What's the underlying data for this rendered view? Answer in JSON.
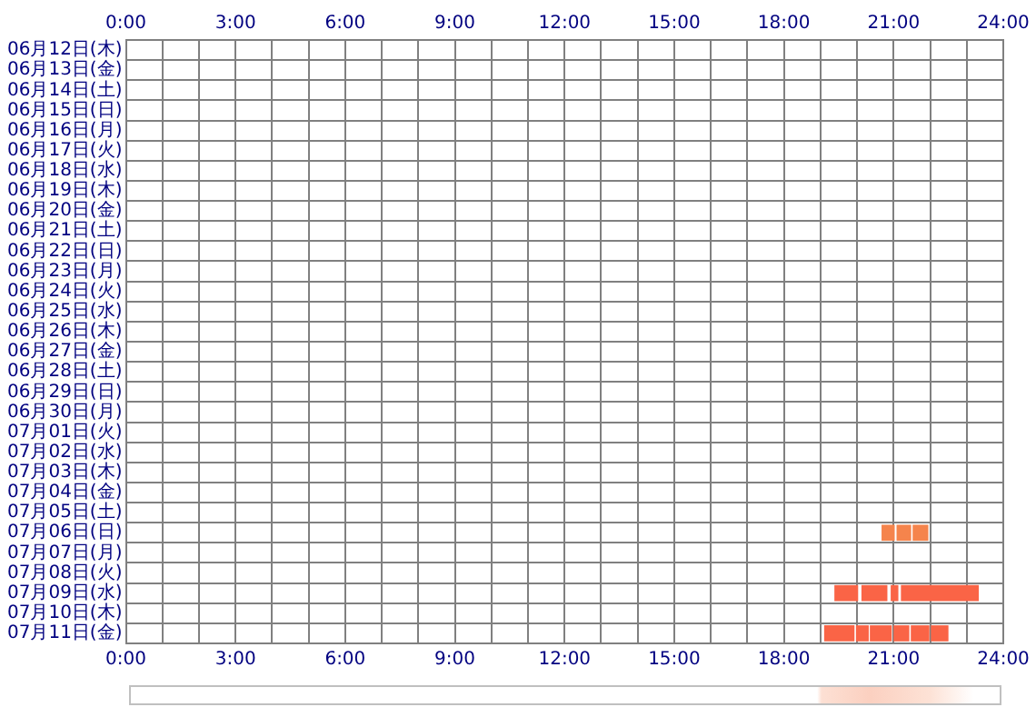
{
  "chart_data": {
    "type": "bar",
    "orientation": "horizontal",
    "categories": [
      "06月12日(木)",
      "06月13日(金)",
      "06月14日(土)",
      "06月15日(日)",
      "06月16日(月)",
      "06月17日(火)",
      "06月18日(水)",
      "06月19日(木)",
      "06月20日(金)",
      "06月21日(土)",
      "06月22日(日)",
      "06月23日(月)",
      "06月24日(火)",
      "06月25日(水)",
      "06月26日(木)",
      "06月27日(金)",
      "06月28日(土)",
      "06月29日(日)",
      "06月30日(月)",
      "07月01日(火)",
      "07月02日(水)",
      "07月03日(木)",
      "07月04日(金)",
      "07月05日(土)",
      "07月06日(日)",
      "07月07日(月)",
      "07月08日(火)",
      "07月09日(水)",
      "07月10日(木)",
      "07月11日(金)"
    ],
    "xlim": [
      0,
      24
    ],
    "xticks": [
      {
        "value": 0,
        "label": "0:00"
      },
      {
        "value": 1,
        "label": null
      },
      {
        "value": 2,
        "label": null
      },
      {
        "value": 3,
        "label": "3:00"
      },
      {
        "value": 4,
        "label": null
      },
      {
        "value": 5,
        "label": null
      },
      {
        "value": 6,
        "label": "6:00"
      },
      {
        "value": 7,
        "label": null
      },
      {
        "value": 8,
        "label": null
      },
      {
        "value": 9,
        "label": "9:00"
      },
      {
        "value": 10,
        "label": null
      },
      {
        "value": 11,
        "label": null
      },
      {
        "value": 12,
        "label": "12:00"
      },
      {
        "value": 13,
        "label": null
      },
      {
        "value": 14,
        "label": null
      },
      {
        "value": 15,
        "label": "15:00"
      },
      {
        "value": 16,
        "label": null
      },
      {
        "value": 17,
        "label": null
      },
      {
        "value": 18,
        "label": "18:00"
      },
      {
        "value": 19,
        "label": null
      },
      {
        "value": 20,
        "label": null
      },
      {
        "value": 21,
        "label": "21:00"
      },
      {
        "value": 22,
        "label": null
      },
      {
        "value": 23,
        "label": null
      },
      {
        "value": 24,
        "label": "24:00"
      }
    ],
    "x2lim": [
      0,
      24
    ],
    "x2ticks": [
      {
        "value": 0,
        "label": "0:00"
      },
      {
        "value": 3,
        "label": "3:00"
      },
      {
        "value": 6,
        "label": "6:00"
      },
      {
        "value": 9,
        "label": "9:00"
      },
      {
        "value": 12,
        "label": "12:00"
      },
      {
        "value": 15,
        "label": "15:00"
      },
      {
        "value": 18,
        "label": "18:00"
      },
      {
        "value": 21,
        "label": "21:00"
      },
      {
        "value": 24,
        "label": "24:00"
      }
    ],
    "grid": true,
    "legend": false,
    "series": [
      {
        "colors": [
          null,
          null,
          null,
          null,
          null,
          null,
          null,
          null,
          null,
          null,
          null,
          null,
          null,
          null,
          null,
          null,
          null,
          null,
          null,
          null,
          null,
          null,
          null,
          null,
          "#f5844c",
          null,
          null,
          "#fa6446",
          null,
          "#fa6446"
        ],
        "base": [
          null,
          null,
          null,
          null,
          null,
          null,
          null,
          null,
          null,
          null,
          null,
          null,
          null,
          null,
          null,
          null,
          null,
          null,
          null,
          null,
          null,
          null,
          null,
          null,
          20.67,
          null,
          null,
          19.38,
          null,
          19.1
        ],
        "values": [
          null,
          null,
          null,
          null,
          null,
          null,
          null,
          null,
          null,
          null,
          null,
          null,
          null,
          null,
          null,
          null,
          null,
          null,
          null,
          null,
          null,
          null,
          null,
          null,
          0.36,
          null,
          null,
          0.65,
          null,
          0.83
        ]
      },
      {
        "colors": [
          null,
          null,
          null,
          null,
          null,
          null,
          null,
          null,
          null,
          null,
          null,
          null,
          null,
          null,
          null,
          null,
          null,
          null,
          null,
          null,
          null,
          null,
          null,
          null,
          "#f5844c",
          null,
          null,
          "#fa6446",
          null,
          "#fa6446"
        ],
        "base": [
          null,
          null,
          null,
          null,
          null,
          null,
          null,
          null,
          null,
          null,
          null,
          null,
          null,
          null,
          null,
          null,
          null,
          null,
          null,
          null,
          null,
          null,
          null,
          null,
          21.08,
          null,
          null,
          20.12,
          null,
          19.97
        ],
        "values": [
          null,
          null,
          null,
          null,
          null,
          null,
          null,
          null,
          null,
          null,
          null,
          null,
          null,
          null,
          null,
          null,
          null,
          null,
          null,
          null,
          null,
          null,
          null,
          null,
          0.4,
          null,
          null,
          0.71,
          null,
          0.35
        ]
      },
      {
        "colors": [
          null,
          null,
          null,
          null,
          null,
          null,
          null,
          null,
          null,
          null,
          null,
          null,
          null,
          null,
          null,
          null,
          null,
          null,
          null,
          null,
          null,
          null,
          null,
          null,
          "#f5844c",
          null,
          null,
          "#fa6446",
          null,
          "#fa6446"
        ],
        "base": [
          null,
          null,
          null,
          null,
          null,
          null,
          null,
          null,
          null,
          null,
          null,
          null,
          null,
          null,
          null,
          null,
          null,
          null,
          null,
          null,
          null,
          null,
          null,
          null,
          21.52,
          null,
          null,
          20.92,
          null,
          20.35
        ],
        "values": [
          null,
          null,
          null,
          null,
          null,
          null,
          null,
          null,
          null,
          null,
          null,
          null,
          null,
          null,
          null,
          null,
          null,
          null,
          null,
          null,
          null,
          null,
          null,
          null,
          0.43,
          null,
          null,
          0.21,
          null,
          0.6
        ]
      },
      {
        "colors": [
          null,
          null,
          null,
          null,
          null,
          null,
          null,
          null,
          null,
          null,
          null,
          null,
          null,
          null,
          null,
          null,
          null,
          null,
          null,
          null,
          null,
          null,
          null,
          null,
          null,
          null,
          null,
          "#fa6446",
          null,
          "#fa6446"
        ],
        "base": [
          null,
          null,
          null,
          null,
          null,
          null,
          null,
          null,
          null,
          null,
          null,
          null,
          null,
          null,
          null,
          null,
          null,
          null,
          null,
          null,
          null,
          null,
          null,
          null,
          null,
          null,
          null,
          21.2,
          null,
          21.0
        ],
        "values": [
          null,
          null,
          null,
          null,
          null,
          null,
          null,
          null,
          null,
          null,
          null,
          null,
          null,
          null,
          null,
          null,
          null,
          null,
          null,
          null,
          null,
          null,
          null,
          null,
          null,
          null,
          null,
          2.13,
          null,
          0.43
        ]
      },
      {
        "colors": [
          null,
          null,
          null,
          null,
          null,
          null,
          null,
          null,
          null,
          null,
          null,
          null,
          null,
          null,
          null,
          null,
          null,
          null,
          null,
          null,
          null,
          null,
          null,
          null,
          null,
          null,
          null,
          null,
          null,
          "#fa6446"
        ],
        "base": [
          null,
          null,
          null,
          null,
          null,
          null,
          null,
          null,
          null,
          null,
          null,
          null,
          null,
          null,
          null,
          null,
          null,
          null,
          null,
          null,
          null,
          null,
          null,
          null,
          null,
          null,
          null,
          null,
          null,
          21.47
        ],
        "values": [
          null,
          null,
          null,
          null,
          null,
          null,
          null,
          null,
          null,
          null,
          null,
          null,
          null,
          null,
          null,
          null,
          null,
          null,
          null,
          null,
          null,
          null,
          null,
          null,
          null,
          null,
          null,
          null,
          null,
          0.51
        ]
      },
      {
        "colors": [
          null,
          null,
          null,
          null,
          null,
          null,
          null,
          null,
          null,
          null,
          null,
          null,
          null,
          null,
          null,
          null,
          null,
          null,
          null,
          null,
          null,
          null,
          null,
          null,
          null,
          null,
          null,
          null,
          null,
          "#fa6446"
        ],
        "base": [
          null,
          null,
          null,
          null,
          null,
          null,
          null,
          null,
          null,
          null,
          null,
          null,
          null,
          null,
          null,
          null,
          null,
          null,
          null,
          null,
          null,
          null,
          null,
          null,
          null,
          null,
          null,
          null,
          null,
          22.02
        ],
        "values": [
          null,
          null,
          null,
          null,
          null,
          null,
          null,
          null,
          null,
          null,
          null,
          null,
          null,
          null,
          null,
          null,
          null,
          null,
          null,
          null,
          null,
          null,
          null,
          null,
          null,
          null,
          null,
          null,
          null,
          0.48
        ]
      }
    ]
  }
}
